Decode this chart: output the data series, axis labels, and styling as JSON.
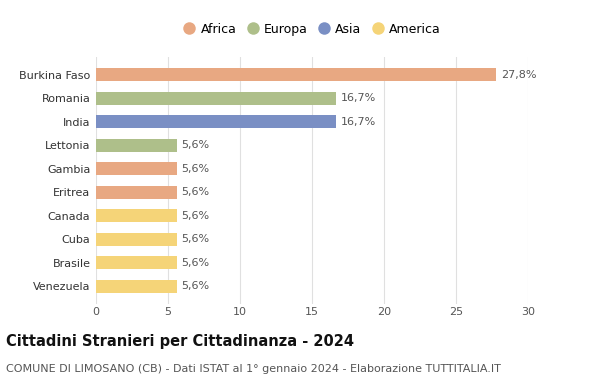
{
  "categories": [
    "Burkina Faso",
    "Romania",
    "India",
    "Lettonia",
    "Gambia",
    "Eritrea",
    "Canada",
    "Cuba",
    "Brasile",
    "Venezuela"
  ],
  "values": [
    27.8,
    16.7,
    16.7,
    5.6,
    5.6,
    5.6,
    5.6,
    5.6,
    5.6,
    5.6
  ],
  "labels": [
    "27,8%",
    "16,7%",
    "16,7%",
    "5,6%",
    "5,6%",
    "5,6%",
    "5,6%",
    "5,6%",
    "5,6%",
    "5,6%"
  ],
  "continents": [
    "Africa",
    "Europa",
    "Asia",
    "Europa",
    "Africa",
    "Africa",
    "America",
    "America",
    "America",
    "America"
  ],
  "colors": {
    "Africa": "#E8A882",
    "Europa": "#AEBF8A",
    "Asia": "#7A8FC4",
    "America": "#F5D478"
  },
  "legend_order": [
    "Africa",
    "Europa",
    "Asia",
    "America"
  ],
  "title": "Cittadini Stranieri per Cittadinanza - 2024",
  "subtitle": "COMUNE DI LIMOSANO (CB) - Dati ISTAT al 1° gennaio 2024 - Elaborazione TUTTITALIA.IT",
  "xlim": [
    0,
    30
  ],
  "xticks": [
    0,
    5,
    10,
    15,
    20,
    25,
    30
  ],
  "background_color": "#ffffff",
  "grid_color": "#e0e0e0",
  "bar_height": 0.55,
  "label_fontsize": 8,
  "title_fontsize": 10.5,
  "subtitle_fontsize": 8,
  "tick_fontsize": 8,
  "ytick_fontsize": 8
}
